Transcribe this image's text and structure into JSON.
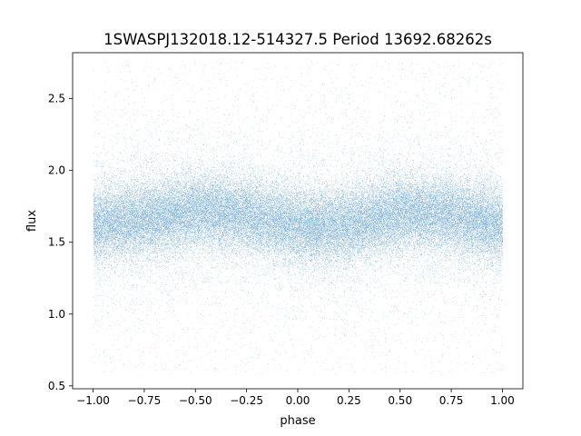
{
  "chart_data": {
    "type": "scatter",
    "title": "1SWASPJ132018.12-514327.5 Period 13692.68262s",
    "xlabel": "phase",
    "ylabel": "flux",
    "xlim": [
      -1.1,
      1.1
    ],
    "ylim": [
      0.48,
      2.82
    ],
    "x_ticks": [
      -1.0,
      -0.75,
      -0.5,
      -0.25,
      0.0,
      0.25,
      0.5,
      0.75,
      1.0
    ],
    "x_tick_labels": [
      "−1.00",
      "−0.75",
      "−0.50",
      "−0.25",
      "0.00",
      "0.25",
      "0.50",
      "0.75",
      "1.00"
    ],
    "y_ticks": [
      0.5,
      1.0,
      1.5,
      2.0,
      2.5
    ],
    "y_tick_labels": [
      "0.5",
      "1.0",
      "1.5",
      "2.0",
      "2.5"
    ],
    "grid": false,
    "legend": "none",
    "marker_color": "#1f77b4",
    "series": [
      {
        "phase_range": [
          -1.0,
          1.0
        ],
        "trend_phase": [
          -1.0,
          -0.75,
          -0.5,
          -0.25,
          0.0,
          0.25,
          0.5,
          0.75,
          1.0
        ],
        "trend_flux": [
          1.62,
          1.66,
          1.72,
          1.69,
          1.61,
          1.62,
          1.71,
          1.69,
          1.62
        ],
        "core_spread": 0.13,
        "flux_range": [
          0.58,
          2.76
        ],
        "approx_points": 60000
      }
    ]
  }
}
